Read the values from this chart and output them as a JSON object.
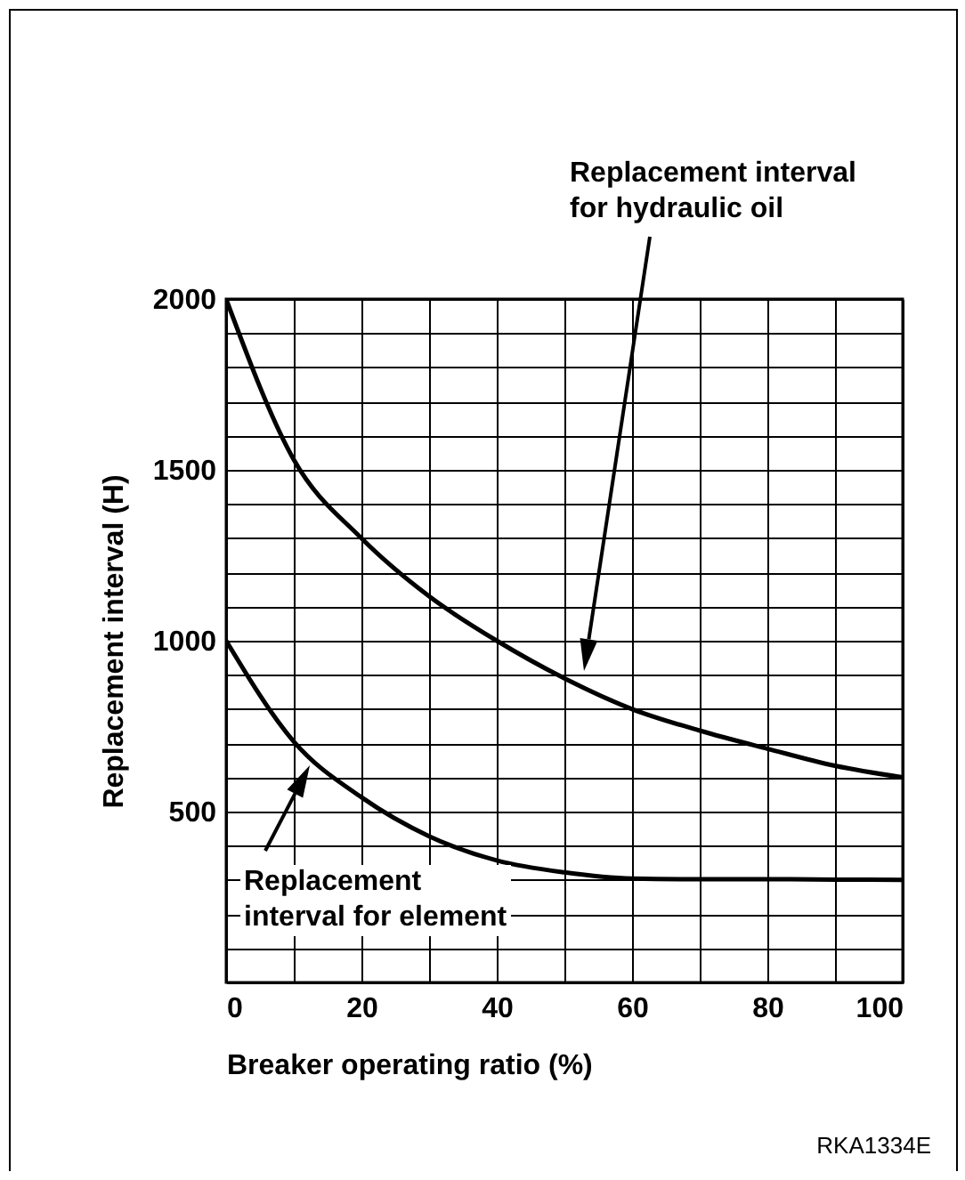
{
  "chart_data": {
    "type": "line",
    "xlabel": "Breaker operating ratio (%)",
    "ylabel": "Replacement interval (H)",
    "x": [
      0,
      10,
      20,
      30,
      40,
      50,
      60,
      70,
      80,
      90,
      100
    ],
    "series": [
      {
        "color": "#000000",
        "values": [
          2000,
          1530,
          1300,
          1130,
          1000,
          890,
          800,
          737,
          684,
          634,
          600
        ]
      },
      {
        "color": "#000000",
        "values": [
          1000,
          705,
          542,
          428,
          357,
          322,
          304,
          302,
          302,
          301,
          300
        ]
      }
    ],
    "xlim": [
      0,
      100
    ],
    "ylim": [
      0,
      2000
    ],
    "xticks": [
      0,
      {
        "value": 10,
        "label": null
      },
      20,
      {
        "value": 30,
        "label": null
      },
      40,
      {
        "value": 50,
        "label": null
      },
      60,
      {
        "value": 70,
        "label": null
      },
      80,
      {
        "value": 90,
        "label": null
      },
      100
    ],
    "yticks": [
      {
        "value": 0,
        "label": null
      },
      {
        "value": 100,
        "label": null
      },
      {
        "value": 200,
        "label": null
      },
      {
        "value": 300,
        "label": null
      },
      {
        "value": 400,
        "label": null
      },
      500,
      {
        "value": 600,
        "label": null
      },
      {
        "value": 700,
        "label": null
      },
      {
        "value": 800,
        "label": null
      },
      {
        "value": 900,
        "label": null
      },
      1000,
      {
        "value": 1100,
        "label": null
      },
      {
        "value": 1200,
        "label": null
      },
      {
        "value": 1300,
        "label": null
      },
      {
        "value": 1400,
        "label": null
      },
      1500,
      {
        "value": 1600,
        "label": null
      },
      {
        "value": 1700,
        "label": null
      },
      {
        "value": 1800,
        "label": null
      },
      {
        "value": 1900,
        "label": null
      },
      2000
    ],
    "grid": true,
    "legend": false,
    "marker": "none",
    "line_style": "solid",
    "annotations": [
      "Replacement interval\nfor hydraulic oil",
      "Replacement\ninterval for element",
      "RKA1334E"
    ]
  }
}
